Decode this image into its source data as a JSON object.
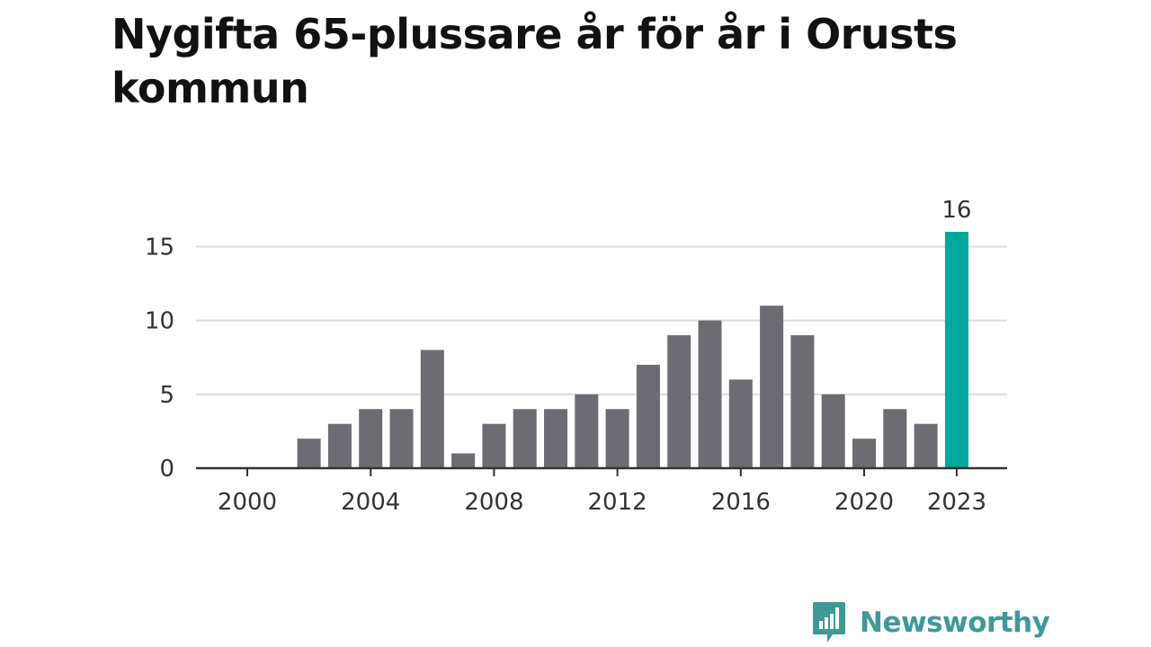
{
  "title": "Nygifta 65-plussare år för år i Orusts kommun",
  "brand": {
    "name": "Newsworthy",
    "icon": "bar-chart-speech-bubble-icon",
    "color": "#3d9a98"
  },
  "chart_data": {
    "type": "bar",
    "title": "Nygifta 65-plussare år för år i Orusts kommun",
    "xlabel": "",
    "ylabel": "",
    "x": [
      2000,
      2001,
      2002,
      2003,
      2004,
      2005,
      2006,
      2007,
      2008,
      2009,
      2010,
      2011,
      2012,
      2013,
      2014,
      2015,
      2016,
      2017,
      2018,
      2019,
      2020,
      2021,
      2022,
      2023
    ],
    "values": [
      0,
      0,
      2,
      3,
      4,
      4,
      8,
      1,
      3,
      4,
      4,
      5,
      4,
      7,
      9,
      10,
      6,
      11,
      9,
      5,
      2,
      4,
      3,
      16
    ],
    "x_ticks": [
      "2000",
      "2004",
      "2008",
      "2012",
      "2016",
      "2020",
      "2023"
    ],
    "y_ticks": [
      "0",
      "5",
      "10",
      "15"
    ],
    "ylim": [
      0,
      16
    ],
    "grid": true,
    "colors": {
      "bar": "#6d6c72",
      "highlight": "#00a79d",
      "grid": "#dcdcdc",
      "axis": "#333333",
      "text": "#333333"
    },
    "highlight": {
      "x": 2023,
      "label": "16"
    }
  }
}
